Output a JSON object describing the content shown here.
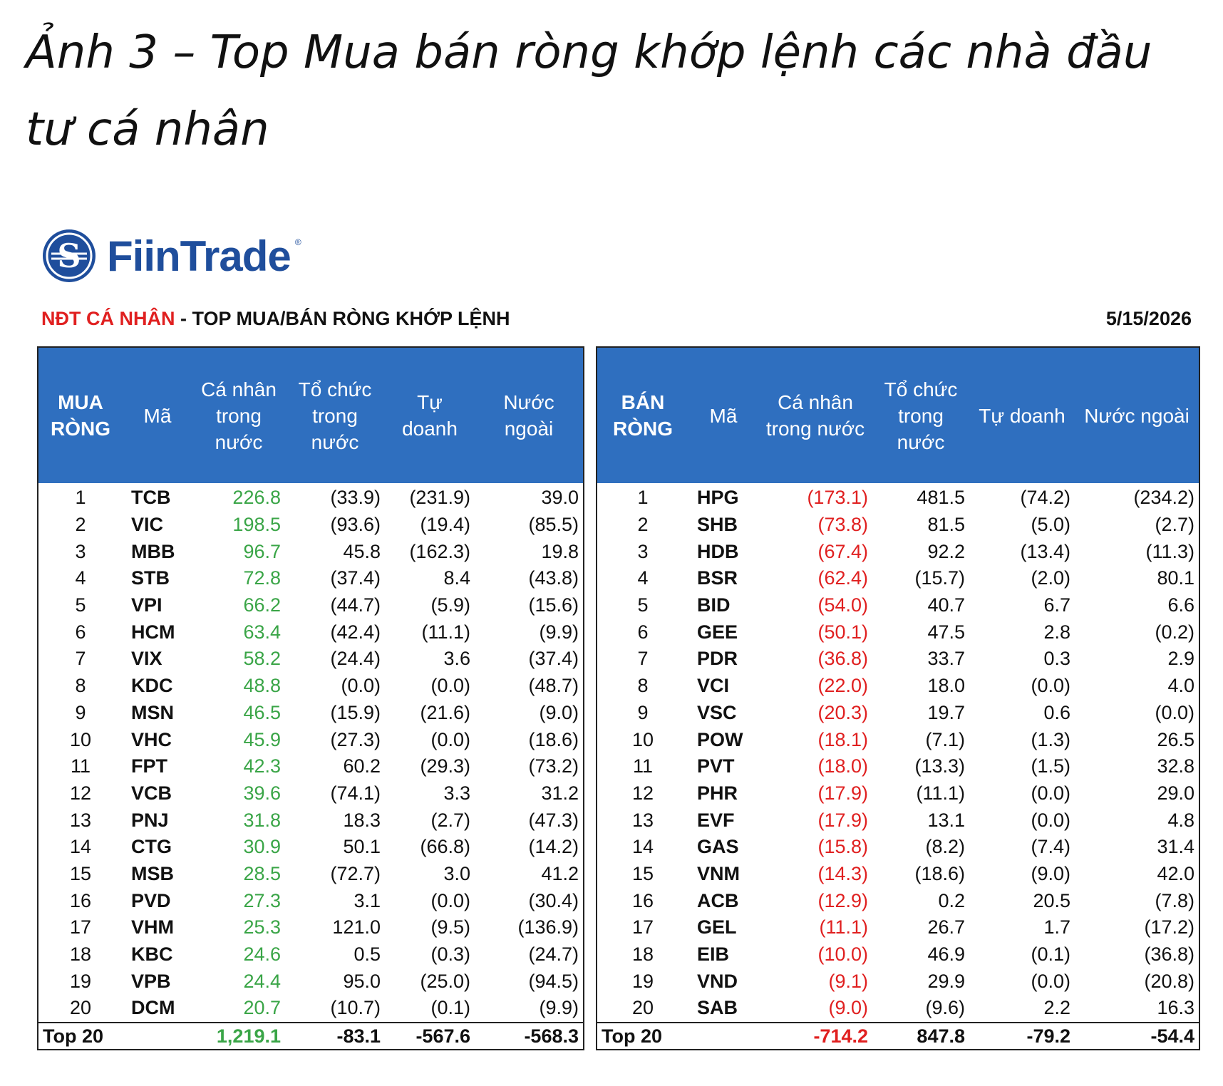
{
  "caption": "Ảnh 3 – Top Mua bán ròng khớp lệnh các nhà đầu tư cá nhân",
  "logo": {
    "text": "FiinTrade",
    "icon": "fiintrade-s-logo-icon",
    "brand_color": "#1f4e9c"
  },
  "subtitle": {
    "highlight": "NĐT CÁ NHÂN",
    "rest": " - TOP MUA/BÁN RÒNG KHỚP LỆNH"
  },
  "date": "5/15/2026",
  "colors": {
    "header_bg": "#2f6fbf",
    "positive": "#3aa547",
    "negative": "#e02020"
  },
  "buy": {
    "headers": [
      "MUA\nRÒNG",
      "Mã",
      "Cá nhân\ntrong\nnước",
      "Tổ chức\ntrong\nnước",
      "Tự\ndoanh",
      "Nước\nngoài"
    ],
    "rows": [
      {
        "rank": "1",
        "code": "TCB",
        "individual": "226.8",
        "institutional": "(33.9)",
        "proprietary": "(231.9)",
        "foreign": "39.0"
      },
      {
        "rank": "2",
        "code": "VIC",
        "individual": "198.5",
        "institutional": "(93.6)",
        "proprietary": "(19.4)",
        "foreign": "(85.5)"
      },
      {
        "rank": "3",
        "code": "MBB",
        "individual": "96.7",
        "institutional": "45.8",
        "proprietary": "(162.3)",
        "foreign": "19.8"
      },
      {
        "rank": "4",
        "code": "STB",
        "individual": "72.8",
        "institutional": "(37.4)",
        "proprietary": "8.4",
        "foreign": "(43.8)"
      },
      {
        "rank": "5",
        "code": "VPI",
        "individual": "66.2",
        "institutional": "(44.7)",
        "proprietary": "(5.9)",
        "foreign": "(15.6)"
      },
      {
        "rank": "6",
        "code": "HCM",
        "individual": "63.4",
        "institutional": "(42.4)",
        "proprietary": "(11.1)",
        "foreign": "(9.9)"
      },
      {
        "rank": "7",
        "code": "VIX",
        "individual": "58.2",
        "institutional": "(24.4)",
        "proprietary": "3.6",
        "foreign": "(37.4)"
      },
      {
        "rank": "8",
        "code": "KDC",
        "individual": "48.8",
        "institutional": "(0.0)",
        "proprietary": "(0.0)",
        "foreign": "(48.7)"
      },
      {
        "rank": "9",
        "code": "MSN",
        "individual": "46.5",
        "institutional": "(15.9)",
        "proprietary": "(21.6)",
        "foreign": "(9.0)"
      },
      {
        "rank": "10",
        "code": "VHC",
        "individual": "45.9",
        "institutional": "(27.3)",
        "proprietary": "(0.0)",
        "foreign": "(18.6)"
      },
      {
        "rank": "11",
        "code": "FPT",
        "individual": "42.3",
        "institutional": "60.2",
        "proprietary": "(29.3)",
        "foreign": "(73.2)"
      },
      {
        "rank": "12",
        "code": "VCB",
        "individual": "39.6",
        "institutional": "(74.1)",
        "proprietary": "3.3",
        "foreign": "31.2"
      },
      {
        "rank": "13",
        "code": "PNJ",
        "individual": "31.8",
        "institutional": "18.3",
        "proprietary": "(2.7)",
        "foreign": "(47.3)"
      },
      {
        "rank": "14",
        "code": "CTG",
        "individual": "30.9",
        "institutional": "50.1",
        "proprietary": "(66.8)",
        "foreign": "(14.2)"
      },
      {
        "rank": "15",
        "code": "MSB",
        "individual": "28.5",
        "institutional": "(72.7)",
        "proprietary": "3.0",
        "foreign": "41.2"
      },
      {
        "rank": "16",
        "code": "PVD",
        "individual": "27.3",
        "institutional": "3.1",
        "proprietary": "(0.0)",
        "foreign": "(30.4)"
      },
      {
        "rank": "17",
        "code": "VHM",
        "individual": "25.3",
        "institutional": "121.0",
        "proprietary": "(9.5)",
        "foreign": "(136.9)"
      },
      {
        "rank": "18",
        "code": "KBC",
        "individual": "24.6",
        "institutional": "0.5",
        "proprietary": "(0.3)",
        "foreign": "(24.7)"
      },
      {
        "rank": "19",
        "code": "VPB",
        "individual": "24.4",
        "institutional": "95.0",
        "proprietary": "(25.0)",
        "foreign": "(94.5)"
      },
      {
        "rank": "20",
        "code": "DCM",
        "individual": "20.7",
        "institutional": "(10.7)",
        "proprietary": "(0.1)",
        "foreign": "(9.9)"
      }
    ],
    "total": {
      "label": "Top 20",
      "individual": "1,219.1",
      "institutional": "-83.1",
      "proprietary": "-567.6",
      "foreign": "-568.3"
    }
  },
  "sell": {
    "headers": [
      "BÁN\nRÒNG",
      "Mã",
      "Cá nhân\ntrong nước",
      "Tổ chức\ntrong\nnước",
      "Tự doanh",
      "Nước ngoài"
    ],
    "rows": [
      {
        "rank": "1",
        "code": "HPG",
        "individual": "(173.1)",
        "institutional": "481.5",
        "proprietary": "(74.2)",
        "foreign": "(234.2)"
      },
      {
        "rank": "2",
        "code": "SHB",
        "individual": "(73.8)",
        "institutional": "81.5",
        "proprietary": "(5.0)",
        "foreign": "(2.7)"
      },
      {
        "rank": "3",
        "code": "HDB",
        "individual": "(67.4)",
        "institutional": "92.2",
        "proprietary": "(13.4)",
        "foreign": "(11.3)"
      },
      {
        "rank": "4",
        "code": "BSR",
        "individual": "(62.4)",
        "institutional": "(15.7)",
        "proprietary": "(2.0)",
        "foreign": "80.1"
      },
      {
        "rank": "5",
        "code": "BID",
        "individual": "(54.0)",
        "institutional": "40.7",
        "proprietary": "6.7",
        "foreign": "6.6"
      },
      {
        "rank": "6",
        "code": "GEE",
        "individual": "(50.1)",
        "institutional": "47.5",
        "proprietary": "2.8",
        "foreign": "(0.2)"
      },
      {
        "rank": "7",
        "code": "PDR",
        "individual": "(36.8)",
        "institutional": "33.7",
        "proprietary": "0.3",
        "foreign": "2.9"
      },
      {
        "rank": "8",
        "code": "VCI",
        "individual": "(22.0)",
        "institutional": "18.0",
        "proprietary": "(0.0)",
        "foreign": "4.0"
      },
      {
        "rank": "9",
        "code": "VSC",
        "individual": "(20.3)",
        "institutional": "19.7",
        "proprietary": "0.6",
        "foreign": "(0.0)"
      },
      {
        "rank": "10",
        "code": "POW",
        "individual": "(18.1)",
        "institutional": "(7.1)",
        "proprietary": "(1.3)",
        "foreign": "26.5"
      },
      {
        "rank": "11",
        "code": "PVT",
        "individual": "(18.0)",
        "institutional": "(13.3)",
        "proprietary": "(1.5)",
        "foreign": "32.8"
      },
      {
        "rank": "12",
        "code": "PHR",
        "individual": "(17.9)",
        "institutional": "(11.1)",
        "proprietary": "(0.0)",
        "foreign": "29.0"
      },
      {
        "rank": "13",
        "code": "EVF",
        "individual": "(17.9)",
        "institutional": "13.1",
        "proprietary": "(0.0)",
        "foreign": "4.8"
      },
      {
        "rank": "14",
        "code": "GAS",
        "individual": "(15.8)",
        "institutional": "(8.2)",
        "proprietary": "(7.4)",
        "foreign": "31.4"
      },
      {
        "rank": "15",
        "code": "VNM",
        "individual": "(14.3)",
        "institutional": "(18.6)",
        "proprietary": "(9.0)",
        "foreign": "42.0"
      },
      {
        "rank": "16",
        "code": "ACB",
        "individual": "(12.9)",
        "institutional": "0.2",
        "proprietary": "20.5",
        "foreign": "(7.8)"
      },
      {
        "rank": "17",
        "code": "GEL",
        "individual": "(11.1)",
        "institutional": "26.7",
        "proprietary": "1.7",
        "foreign": "(17.2)"
      },
      {
        "rank": "18",
        "code": "EIB",
        "individual": "(10.0)",
        "institutional": "46.9",
        "proprietary": "(0.1)",
        "foreign": "(36.8)"
      },
      {
        "rank": "19",
        "code": "VND",
        "individual": "(9.1)",
        "institutional": "29.9",
        "proprietary": "(0.0)",
        "foreign": "(20.8)"
      },
      {
        "rank": "20",
        "code": "SAB",
        "individual": "(9.0)",
        "institutional": "(9.6)",
        "proprietary": "2.2",
        "foreign": "16.3"
      }
    ],
    "total": {
      "label": "Top 20",
      "individual": "-714.2",
      "institutional": "847.8",
      "proprietary": "-79.2",
      "foreign": "-54.4"
    }
  }
}
